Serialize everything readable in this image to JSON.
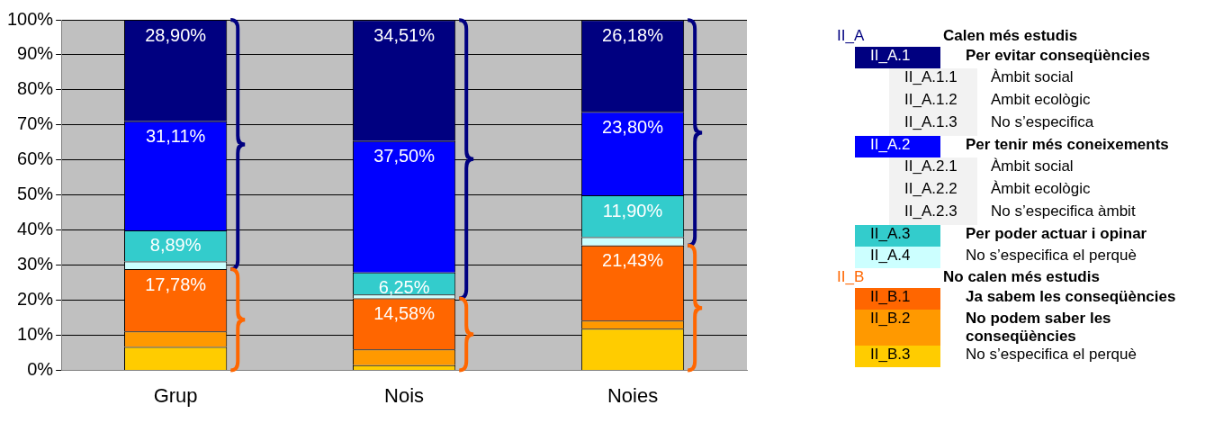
{
  "chart_data": {
    "type": "bar",
    "stacked": true,
    "categories": [
      "Grup",
      "Nois",
      "Noies"
    ],
    "series": [
      {
        "name": "II_B.3",
        "color": "#ffcc00",
        "values": [
          6.7,
          1.5,
          11.9
        ]
      },
      {
        "name": "II_B.2",
        "color": "#ff9900",
        "values": [
          4.4,
          4.5,
          2.3
        ]
      },
      {
        "name": "II_B.1",
        "color": "#ff6600",
        "values": [
          17.78,
          14.58,
          21.43
        ],
        "value_labels": [
          "17,78%",
          "14,58%",
          "21,43%"
        ]
      },
      {
        "name": "II_A.4",
        "color": "#ccffff",
        "values": [
          2.2,
          1.1,
          2.4
        ]
      },
      {
        "name": "II_A.3",
        "color": "#33cccc",
        "values": [
          8.89,
          6.25,
          11.9
        ],
        "value_labels": [
          "8,89%",
          "6,25%",
          "11,90%"
        ]
      },
      {
        "name": "II_A.2",
        "color": "#0000ff",
        "values": [
          31.11,
          37.5,
          23.8
        ],
        "value_labels": [
          "31,11%",
          "37,50%",
          "23,80%"
        ]
      },
      {
        "name": "II_A.1",
        "color": "#000080",
        "values": [
          28.9,
          34.51,
          26.18
        ],
        "value_labels": [
          "28,90%",
          "34,51%",
          "26,18%"
        ]
      }
    ],
    "ylim": [
      0,
      100
    ],
    "yticks": [
      {
        "value": 0,
        "label": "0%"
      },
      {
        "value": 10,
        "label": "10%"
      },
      {
        "value": 20,
        "label": "20%"
      },
      {
        "value": 30,
        "label": "30%"
      },
      {
        "value": 40,
        "label": "40%"
      },
      {
        "value": 50,
        "label": "50%"
      },
      {
        "value": 60,
        "label": "60%"
      },
      {
        "value": 70,
        "label": "70%"
      },
      {
        "value": 80,
        "label": "80%"
      },
      {
        "value": 90,
        "label": "90%"
      },
      {
        "value": 100,
        "label": "100%"
      }
    ],
    "grid": "y",
    "legend": "right",
    "annotations": [
      "II_A",
      "Calen més estudis",
      "Per evitar conseqüències",
      "II_A.1.1",
      "Àmbit social",
      "II_A.1.2",
      "Ambit ecològic",
      "II_A.1.3",
      "No s’especifica",
      "Per tenir més coneixements",
      "II_A.2.1",
      "Àmbit social",
      "II_A.2.2",
      "Àmbit ecològic",
      "II_A.2.3",
      "No s’especifica àmbit",
      "Per poder actuar i opinar",
      "No s’especifica el perquè",
      "II_B",
      "No calen més estudis",
      "Ja sabem les conseqüències",
      "No podem saber les conseqüències",
      "No s’especifica el perquè"
    ]
  }
}
